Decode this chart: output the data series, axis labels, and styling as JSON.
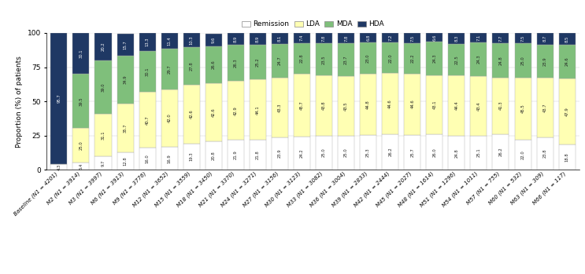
{
  "categories": [
    "Baseline (N1 = 4201)",
    "M2 (N1 = 3914)",
    "M3 (N1 = 3997)",
    "M6 (N1 = 3913)",
    "M9 (N1 = 3776)",
    "M12 (N1 = 3652)",
    "M15 (N1 = 3559)",
    "M18 (N1 = 3450)",
    "M21 (N1 = 3370)",
    "M24 (N1 = 3271)",
    "M27 (N1 = 3156)",
    "M30 (N1 = 3123)",
    "M33 (N1 = 3082)",
    "M36 (N1 = 3004)",
    "M39 (N1 = 2833)",
    "M42 (N1 = 2444)",
    "M45 (N1 = 2027)",
    "M48 (N1 = 1614)",
    "M51 (N1 = 1296)",
    "M54 (N1 = 1011)",
    "M57 (N1 = 755)",
    "M60 (N1 = 532)",
    "M63 (N1 = 309)",
    "M66 (N1 = 117)"
  ],
  "remission": [
    4.3,
    5.4,
    9.7,
    12.8,
    16.0,
    16.9,
    19.3,
    20.8,
    21.9,
    21.8,
    23.9,
    24.2,
    25.0,
    25.0,
    25.3,
    26.2,
    25.7,
    26.0,
    24.8,
    25.1,
    26.2,
    22.0,
    23.8,
    18.8
  ],
  "lda": [
    0.0,
    25.0,
    31.1,
    35.7,
    40.7,
    42.0,
    42.6,
    42.6,
    42.9,
    44.1,
    43.3,
    45.7,
    43.8,
    43.5,
    44.8,
    44.6,
    44.6,
    43.1,
    44.4,
    43.4,
    41.3,
    45.5,
    43.7,
    47.9
  ],
  "mda": [
    0.0,
    39.5,
    39.0,
    34.9,
    30.1,
    29.7,
    27.8,
    26.6,
    26.3,
    25.2,
    24.7,
    22.8,
    23.5,
    23.7,
    23.0,
    22.0,
    22.2,
    24.3,
    22.5,
    24.3,
    24.8,
    25.0,
    23.9,
    24.6
  ],
  "hda": [
    95.7,
    30.1,
    20.2,
    15.7,
    13.3,
    11.4,
    10.3,
    9.6,
    8.9,
    8.9,
    8.1,
    7.4,
    7.8,
    7.8,
    6.8,
    7.2,
    7.5,
    6.6,
    8.3,
    7.1,
    7.7,
    7.5,
    8.7,
    8.5
  ],
  "remission_color": "#ffffff",
  "lda_color": "#ffffb3",
  "mda_color": "#7fbf7b",
  "hda_color": "#1f3864",
  "bar_edge_color": "#aaaaaa",
  "bar_width": 0.75,
  "ylabel": "Proportion (%) of patients",
  "ylim": [
    0,
    100
  ],
  "legend_labels": [
    "Remission",
    "LDA",
    "MDA",
    "HDA"
  ],
  "axis_fontsize": 6.5,
  "tick_fontsize": 5.0,
  "value_fontsize": 3.8,
  "legend_fontsize": 6.5
}
